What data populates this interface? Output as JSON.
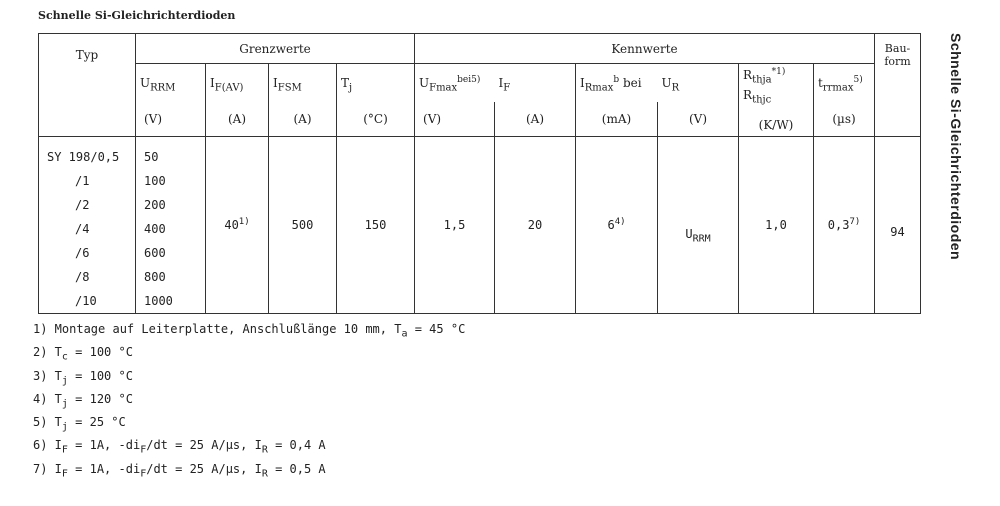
{
  "title": "Schnelle Si-Gleichrichterdioden",
  "side_title": "Schnelle Si-Gleichrichterdioden",
  "header": {
    "typ": "Typ",
    "grenzwerte": "Grenzwerte",
    "kennwerte": "Kennwerte",
    "bauform": "Bau-form",
    "cols": [
      {
        "sym": "U",
        "sub": "RRM",
        "sup": "",
        "unit": "(V)"
      },
      {
        "sym": "I",
        "sub": "F(AV)",
        "sup": "",
        "unit": "(A)"
      },
      {
        "sym": "I",
        "sub": "FSM",
        "sup": "",
        "unit": "(A)"
      },
      {
        "sym": "T",
        "sub": "j",
        "sup": "",
        "unit": "(°C)"
      },
      {
        "sym": "U",
        "sub": "Fmax",
        "sup": "bei",
        "sup2": "5)",
        "unit": "(V)"
      },
      {
        "sym": "I",
        "sub": "F",
        "sup": "",
        "unit": "(A)"
      },
      {
        "sym": "I",
        "sub": "Rmax",
        "sup": "b",
        "extra": "bei",
        "unit": "(mA)"
      },
      {
        "sym": "U",
        "sub": "R",
        "sup": "",
        "unit": "(V)"
      },
      {
        "sym": "R",
        "sub": "thja",
        "sup": "*1)",
        "sym2": "R",
        "sub2": "thjc",
        "unit": "(K/W)"
      },
      {
        "sym": "t",
        "sub": "rrmax",
        "sup": "5)",
        "unit": "(µs)"
      }
    ]
  },
  "rows": {
    "types": [
      "SY 198/0,5",
      "/1",
      "/2",
      "/4",
      "/6",
      "/8",
      "/10"
    ],
    "urrm": [
      "50",
      "100",
      "200",
      "400",
      "600",
      "800",
      "1000"
    ],
    "if_av": "40",
    "if_av_sup": "1)",
    "ifsm": "500",
    "tj": "150",
    "uf": "1,5",
    "if": "20",
    "ir": "6",
    "ir_sup": "4)",
    "ur_sym": "U",
    "ur_sub": "RRM",
    "rth": "1,0",
    "trr": "0,3",
    "trr_sup": "7)",
    "bauform": "94"
  },
  "footnotes": [
    {
      "a": "1) Montage auf Leiterplatte, Anschlußlänge 10 mm, T",
      "s": "a",
      "b": " = 45 °C"
    },
    {
      "a": "2) T",
      "s": "c",
      "b": " = 100 °C"
    },
    {
      "a": "3) T",
      "s": "j",
      "b": " = 100 °C"
    },
    {
      "a": "4) T",
      "s": "j",
      "b": " = 120 °C"
    },
    {
      "a": "5) T",
      "s": "j",
      "b": " = 25 °C"
    },
    {
      "a": "6) I",
      "s": "F",
      "b": " = 1A, -di",
      "s2": "F",
      "c": "/dt = 25 A/µs, I",
      "s3": "R",
      "d": " = 0,4 A"
    },
    {
      "a": "7) I",
      "s": "F",
      "b": " = 1A, -di",
      "s2": "F",
      "c": "/dt = 25 A/µs, I",
      "s3": "R",
      "d": " = 0,5 A"
    }
  ]
}
